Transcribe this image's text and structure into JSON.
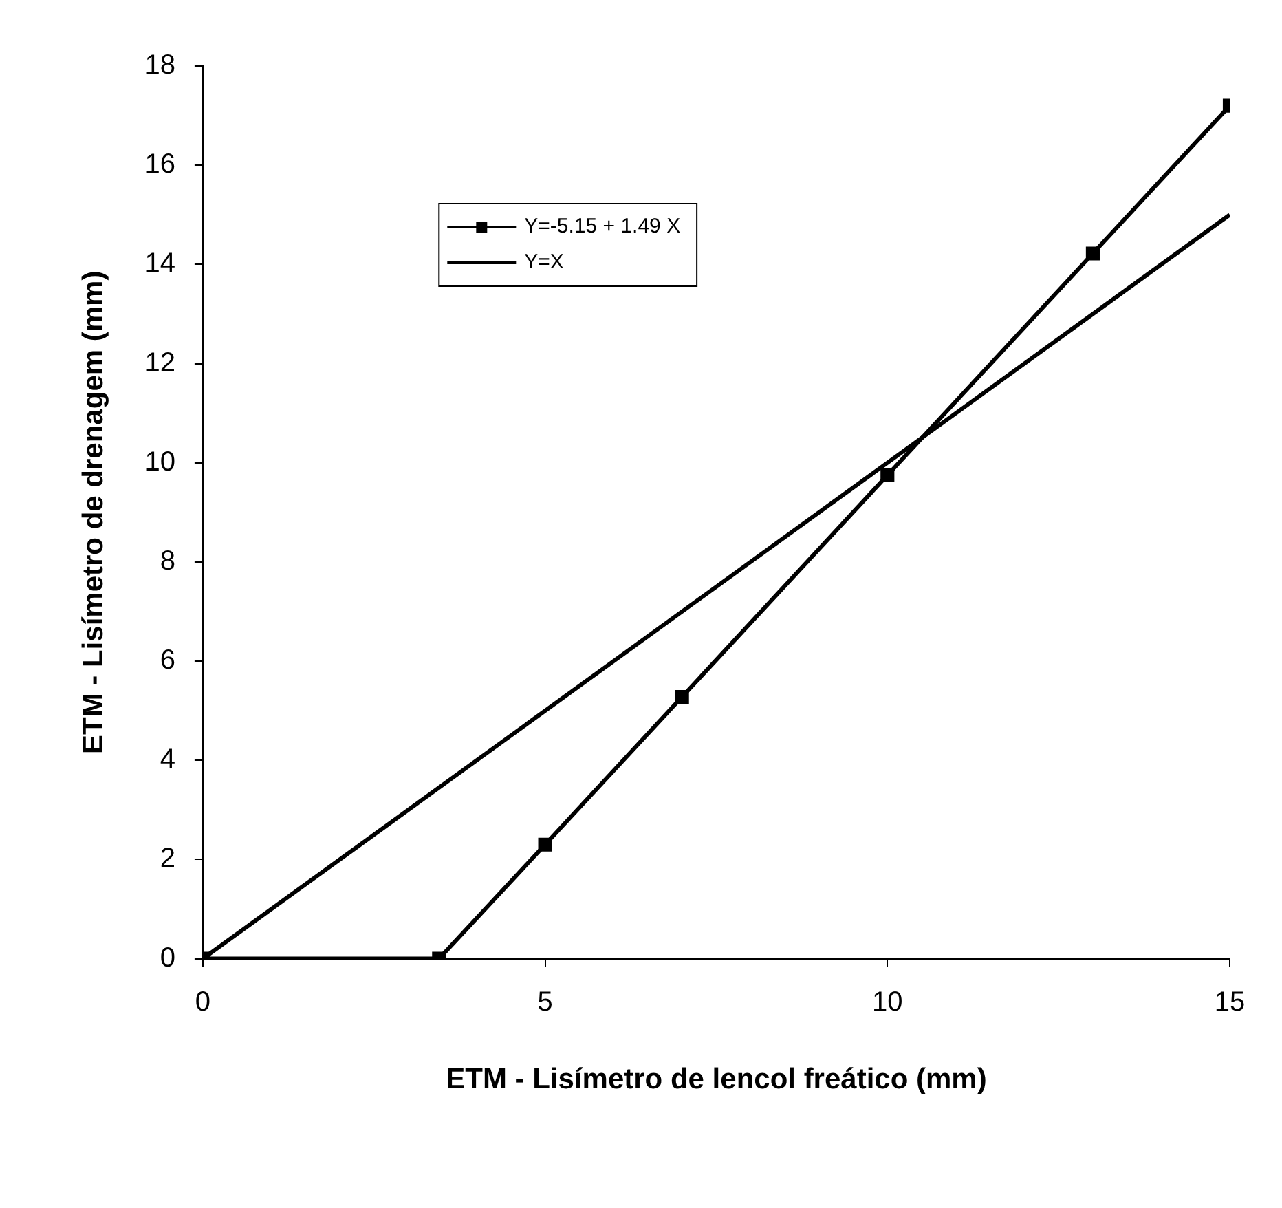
{
  "chart_data": {
    "type": "line",
    "xlabel": "ETM - Lisímetro de lencol freático (mm)",
    "ylabel": "ETM - Lisímetro de drenagem (mm)",
    "xlim": [
      0,
      15
    ],
    "xticks": [
      0,
      5,
      10,
      15
    ],
    "ylim": [
      0,
      18
    ],
    "yticks": [
      0,
      2,
      4,
      6,
      8,
      10,
      12,
      14,
      16,
      18
    ],
    "grid": false,
    "legend": "top left",
    "series": [
      {
        "name": "Y=-5.15 + 1.49 X",
        "color": "#000000",
        "marker": "square",
        "x": [
          0,
          3.45,
          5,
          7,
          10,
          13,
          15
        ],
        "values": [
          0,
          0,
          2.3,
          5.28,
          9.75,
          14.22,
          17.2
        ]
      },
      {
        "name": "Y=X",
        "color": "#000000",
        "marker": "none",
        "x": [
          0,
          15
        ],
        "values": [
          0,
          15
        ]
      }
    ]
  }
}
